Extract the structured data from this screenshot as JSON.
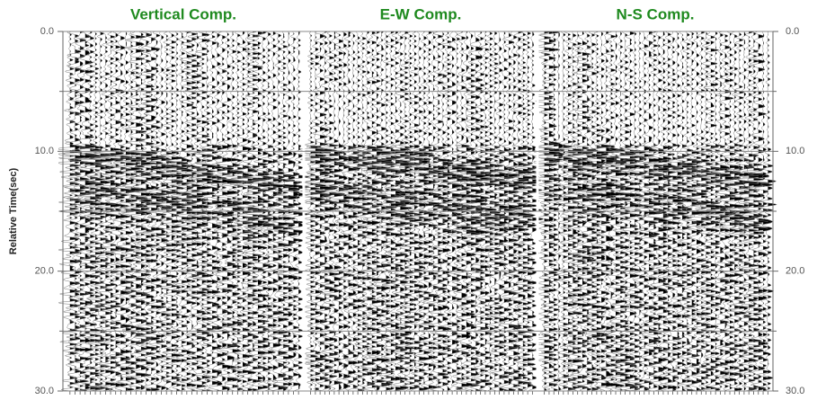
{
  "chart_data": {
    "type": "seismogram",
    "panels": [
      "Vertical Comp.",
      "E-W Comp.",
      "N-S Comp."
    ],
    "ylabel": "Relative Time(sec)",
    "ylim": [
      0,
      30
    ],
    "y_inverted": true,
    "yticks": [
      {
        "value": 0,
        "label": "0.0"
      },
      {
        "value": 10,
        "label": "10.0"
      },
      {
        "value": 20,
        "label": "20.0"
      },
      {
        "value": 30,
        "label": "30.0"
      }
    ],
    "minor_yticks": [
      5,
      15,
      25
    ],
    "grid": true,
    "title_color": "#1f8a1f"
  }
}
